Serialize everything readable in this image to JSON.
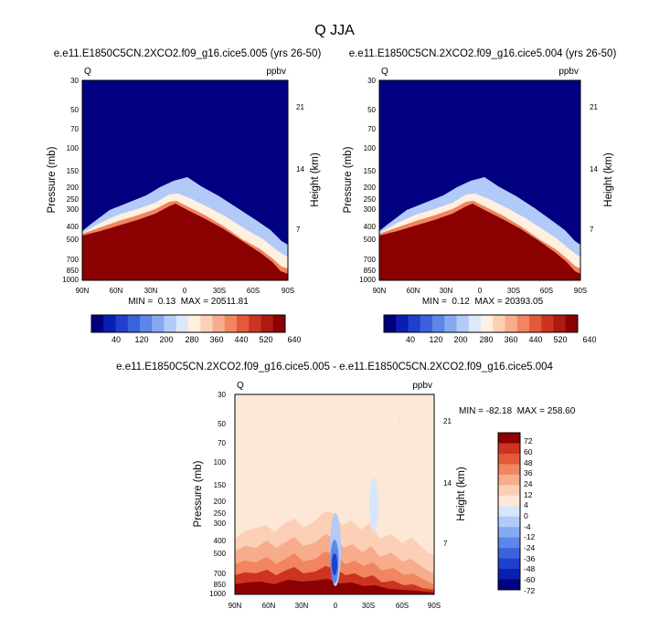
{
  "title": "Q JJA",
  "colors": {
    "abs_levels": [
      "#000080",
      "#0a1fb0",
      "#1f3fcc",
      "#3a62dd",
      "#5c86e8",
      "#86a9f0",
      "#b2caf7",
      "#dce8fc",
      "#fff0e0",
      "#fbd0b6",
      "#f7ac8c",
      "#f0855f",
      "#e35a3a",
      "#cc3320",
      "#ad1a10",
      "#8b0000"
    ],
    "diff_levels": [
      "#000080",
      "#0a1fb0",
      "#1f3fcc",
      "#3a62dd",
      "#5c86e8",
      "#86a9f0",
      "#b2caf7",
      "#d8e6fb",
      "#fde8d7",
      "#fbd0b6",
      "#f7ac8c",
      "#f0855f",
      "#e35a3a",
      "#cc3320",
      "#8b0000"
    ],
    "frame": "#000000"
  },
  "chart_data": [
    {
      "type": "heatmap",
      "subtitle": "e.e11.E1850C5CN.2XCO2.f09_g16.cice5.005 (yrs 26-50)",
      "var_label": "Q",
      "units_label": "ppbv",
      "ylabel": "Pressure (mb)",
      "y2label": "Height (km)",
      "x_ticks": [
        "90N",
        "60N",
        "30N",
        "0",
        "30S",
        "60S",
        "90S"
      ],
      "y_ticks": [
        "30",
        "50",
        "70",
        "100",
        "150",
        "200",
        "250",
        "300",
        "400",
        "500",
        "700",
        "850",
        "1000"
      ],
      "y2_ticks": [
        "21",
        "14",
        "7"
      ],
      "min_max_text": "MIN =  0.13  MAX = 20511.81",
      "colorbar_labels": [
        "40",
        "120",
        "200",
        "280",
        "360",
        "440",
        "520",
        "640"
      ]
    },
    {
      "type": "heatmap",
      "subtitle": "e.e11.E1850C5CN.2XCO2.f09_g16.cice5.004 (yrs 26-50)",
      "var_label": "Q",
      "units_label": "ppbv",
      "ylabel": "Pressure (mb)",
      "y2label": "Height (km)",
      "x_ticks": [
        "90N",
        "60N",
        "30N",
        "0",
        "30S",
        "60S",
        "90S"
      ],
      "y_ticks": [
        "30",
        "50",
        "70",
        "100",
        "150",
        "200",
        "250",
        "300",
        "400",
        "500",
        "700",
        "850",
        "1000"
      ],
      "y2_ticks": [
        "21",
        "14",
        "7"
      ],
      "min_max_text": "MIN =  0.12  MAX = 20393.05",
      "colorbar_labels": [
        "40",
        "120",
        "200",
        "280",
        "360",
        "440",
        "520",
        "640"
      ]
    },
    {
      "type": "heatmap",
      "subtitle": "e.e11.E1850C5CN.2XCO2.f09_g16.cice5.005 - e.e11.E1850C5CN.2XCO2.f09_g16.cice5.004",
      "var_label": "Q",
      "units_label": "ppbv",
      "ylabel": "Pressure (mb)",
      "y2label": "Height (km)",
      "x_ticks": [
        "90N",
        "60N",
        "30N",
        "0",
        "30S",
        "60S",
        "90S"
      ],
      "y_ticks": [
        "30",
        "50",
        "70",
        "100",
        "150",
        "200",
        "250",
        "300",
        "400",
        "500",
        "700",
        "850",
        "1000"
      ],
      "y2_ticks": [
        "21",
        "14",
        "7"
      ],
      "min_max_text": "MIN = -82.18  MAX = 258.60",
      "colorbar_labels": [
        "72",
        "60",
        "48",
        "36",
        "24",
        "12",
        "4",
        "0",
        "-4",
        "-12",
        "-24",
        "-36",
        "-48",
        "-60",
        "-72"
      ]
    }
  ]
}
